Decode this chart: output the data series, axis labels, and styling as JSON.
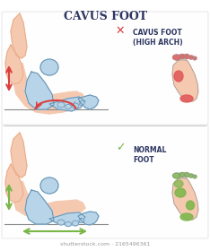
{
  "title": "CAVUS FOOT",
  "title_color": "#2d3561",
  "title_fontsize": 9,
  "bg_color": "#ffffff",
  "panel1_label": "CAVUS FOOT\n(HIGH ARCH)",
  "panel2_label": "NORMAL\nFOOT",
  "label_color": "#2d3561",
  "border_color": "#cccccc",
  "red_color": "#d94040",
  "green_color": "#7ab648",
  "skin_color": "#f5c8b0",
  "skin_dark": "#e8a882",
  "bone_color": "#b8d4e8",
  "bone_dark": "#8ab0cc",
  "bone_line": "#6090b0",
  "foot_sole_red": "#e05555",
  "foot_sole_pink": "#f5c8b0",
  "foot_sole_green": "#7ab648",
  "watermark": "shutterstock.com · 2165496361",
  "watermark_color": "#999999",
  "watermark_fontsize": 4.5
}
